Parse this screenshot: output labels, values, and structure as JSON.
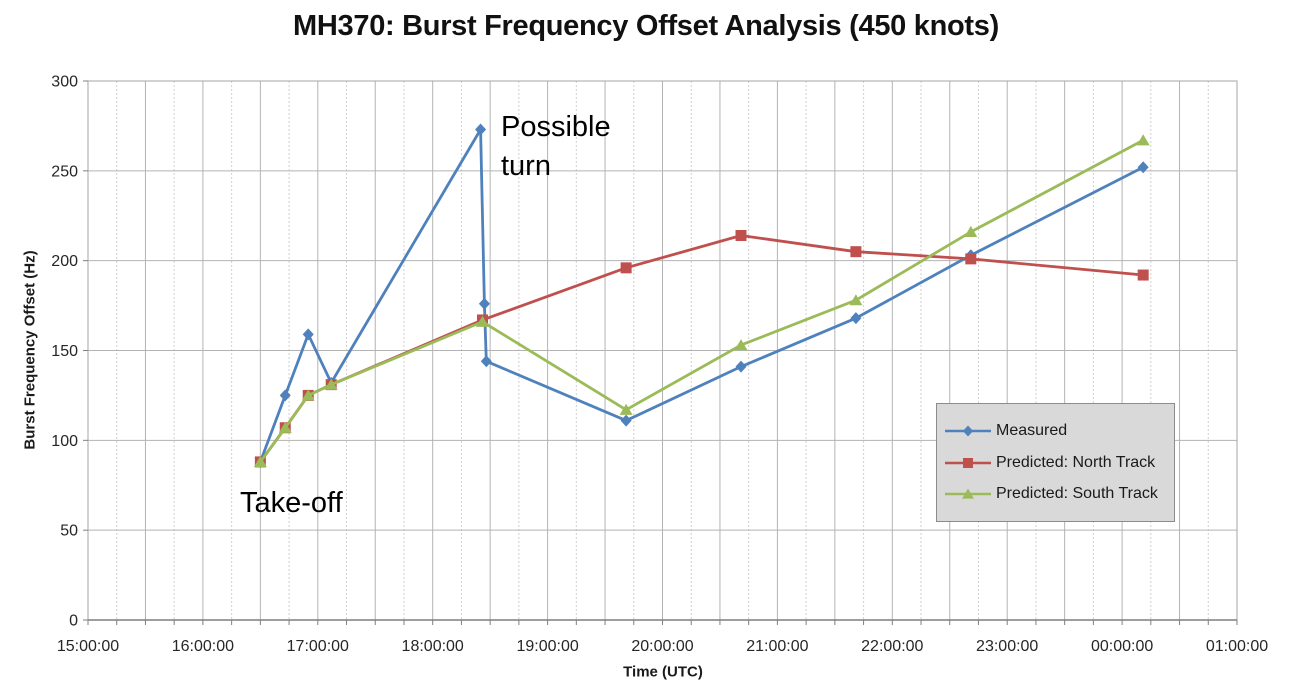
{
  "title": "MH370: Burst Frequency Offset Analysis (450 knots)",
  "chart_data": {
    "type": "line",
    "title": "MH370: Burst Frequency Offset Analysis (450 knots)",
    "xlabel": "Time (UTC)",
    "ylabel": "Burst Frequency Offset (Hz)",
    "x_ticks": [
      "15:00:00",
      "16:00:00",
      "17:00:00",
      "18:00:00",
      "19:00:00",
      "20:00:00",
      "21:00:00",
      "22:00:00",
      "23:00:00",
      "00:00:00",
      "01:00:00"
    ],
    "x_tick_hours": [
      15,
      16,
      17,
      18,
      19,
      20,
      21,
      22,
      23,
      24,
      25
    ],
    "y_ticks": [
      0,
      50,
      100,
      150,
      200,
      250,
      300
    ],
    "ylim": [
      0,
      300
    ],
    "x_domain_hours": [
      15,
      25
    ],
    "grid": {
      "vertical_major_minutes": 30,
      "vertical_minor_minutes": 15,
      "horizontal_major_hz": 50,
      "major_color": "#b3b3b3",
      "minor_color": "#d0d0d0"
    },
    "legend_position": "middle-right",
    "series": [
      {
        "name": "Measured",
        "color": "#4F81BD",
        "marker": "diamond",
        "points": [
          {
            "t": "16:30",
            "v": 88
          },
          {
            "t": "16:43",
            "v": 125
          },
          {
            "t": "16:55",
            "v": 159
          },
          {
            "t": "17:07",
            "v": 132
          },
          {
            "t": "18:25",
            "v": 273
          },
          {
            "t": "18:27",
            "v": 176
          },
          {
            "t": "18:28",
            "v": 144
          },
          {
            "t": "19:41",
            "v": 111
          },
          {
            "t": "20:41",
            "v": 141
          },
          {
            "t": "21:41",
            "v": 168
          },
          {
            "t": "22:41",
            "v": 203
          },
          {
            "t": "00:11",
            "v": 252
          }
        ]
      },
      {
        "name": "Predicted: North Track",
        "color": "#C0504D",
        "marker": "square",
        "points": [
          {
            "t": "16:30",
            "v": 88
          },
          {
            "t": "16:43",
            "v": 107
          },
          {
            "t": "16:55",
            "v": 125
          },
          {
            "t": "17:07",
            "v": 131
          },
          {
            "t": "18:26",
            "v": 167
          },
          {
            "t": "19:41",
            "v": 196
          },
          {
            "t": "20:41",
            "v": 214
          },
          {
            "t": "21:41",
            "v": 205
          },
          {
            "t": "22:41",
            "v": 201
          },
          {
            "t": "00:11",
            "v": 192
          }
        ]
      },
      {
        "name": "Predicted: South Track",
        "color": "#9BBB59",
        "marker": "triangle",
        "points": [
          {
            "t": "16:30",
            "v": 88
          },
          {
            "t": "16:43",
            "v": 107
          },
          {
            "t": "16:55",
            "v": 125
          },
          {
            "t": "17:07",
            "v": 131
          },
          {
            "t": "18:26",
            "v": 166
          },
          {
            "t": "19:41",
            "v": 117
          },
          {
            "t": "20:41",
            "v": 153
          },
          {
            "t": "21:41",
            "v": 178
          },
          {
            "t": "22:41",
            "v": 216
          },
          {
            "t": "00:11",
            "v": 267
          }
        ]
      }
    ],
    "annotations": [
      {
        "id": "possible-turn",
        "text": "Possible turn"
      },
      {
        "id": "take-off",
        "text": "Take-off"
      }
    ]
  }
}
